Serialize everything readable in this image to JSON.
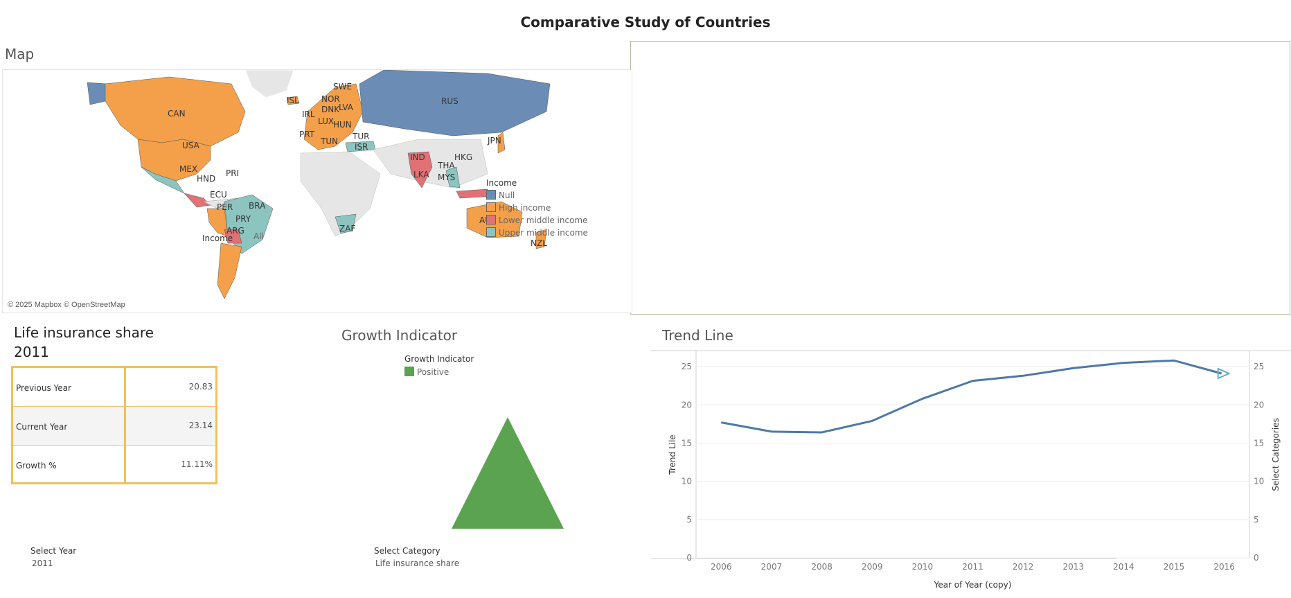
{
  "title": "Comparative Study of Countries",
  "map": {
    "title": "Map",
    "attribution": "© 2025 Mapbox © OpenStreetMap",
    "country_labels": [
      "CAN",
      "USA",
      "MEX",
      "HND",
      "PRI",
      "ECU",
      "PER",
      "BRA",
      "PRY",
      "ARG",
      "ISL",
      "NOR",
      "SWE",
      "DNK",
      "LVA",
      "IRL",
      "LUX",
      "HUN",
      "PRT",
      "TUN",
      "TUR",
      "ISR",
      "RUS",
      "JPN",
      "HKG",
      "IND",
      "LKA",
      "THA",
      "MYS",
      "AUS",
      "NZL",
      "ZAF"
    ],
    "legend": {
      "title": "Income",
      "items": [
        {
          "label": "Null",
          "color": "#6b8db5"
        },
        {
          "label": "High income",
          "color": "#f4a04a"
        },
        {
          "label": "Lower middle income",
          "color": "#e07276"
        },
        {
          "label": "Upper middle income",
          "color": "#8cc5c0"
        }
      ]
    },
    "filter": {
      "label": "Income",
      "value": "All"
    }
  },
  "kpi": {
    "title_line1": "Life insurance share",
    "title_line2": "2011",
    "rows": [
      {
        "label": "Previous Year",
        "value": "20.83"
      },
      {
        "label": "Current Year",
        "value": "23.14"
      },
      {
        "label": "Growth %",
        "value": "11.11%"
      }
    ]
  },
  "growth": {
    "title": "Growth Indicator",
    "legend_title": "Growth Indicator",
    "legend_item": "Positive",
    "color": "#5ba350"
  },
  "filters": {
    "year_label": "Select Year",
    "year_value": "2011",
    "category_label": "Select Category",
    "category_value": "Life insurance share"
  },
  "trend": {
    "title": "Trend Line",
    "ylabel_left": "Trend Lile",
    "ylabel_right": "Select Categories",
    "xlabel": "Year of Year (copy)"
  },
  "chart_data": {
    "type": "line",
    "x": [
      2006,
      2007,
      2008,
      2009,
      2010,
      2011,
      2012,
      2013,
      2014,
      2015,
      2016
    ],
    "series": [
      {
        "values": [
          17.7,
          16.5,
          16.4,
          17.9,
          20.8,
          23.14,
          23.8,
          24.8,
          25.5,
          25.8,
          24.1
        ]
      }
    ],
    "xlabel": "Year of Year (copy)",
    "ylabel": "Trend Lile",
    "y2label": "Select Categories",
    "ylim": [
      0,
      27
    ],
    "yticks": [
      0,
      5,
      10,
      15,
      20,
      25
    ],
    "grid": true,
    "line_color": "#4e79a7",
    "marker_color": "#5aa8c9"
  }
}
